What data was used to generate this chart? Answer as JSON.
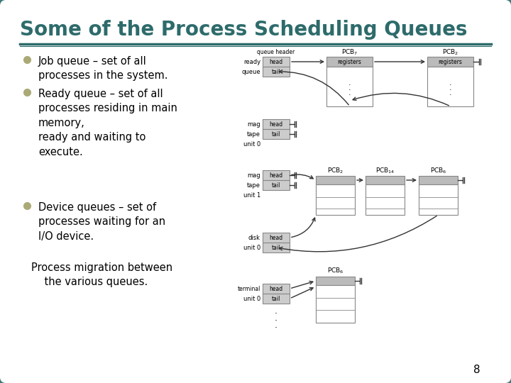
{
  "title": "Some of the Process Scheduling Queues",
  "title_color": "#2E6B6B",
  "title_fontsize": 20,
  "background_color": "#EEEEE8",
  "slide_bg": "#FFFFFF",
  "bullet_color": "#AAAA77",
  "text_color": "#000000",
  "bullets": [
    "Job queue – set of all\nprocesses in the system.",
    "Ready queue – set of all\nprocesses residing in main\nmemory,\nready and waiting to\nexecute.",
    "Device queues – set of\nprocesses waiting for an\nI/O device."
  ],
  "footer_text": "Process migration between\n    the various queues.",
  "page_number": "8",
  "header_line_color": "#2E6B6B",
  "diagram_line_color": "#333333",
  "box_fill": "#CCCCCC",
  "box_border": "#888888",
  "pcb_fill": "#FFFFFF",
  "pcb_header_fill": "#BBBBBB",
  "slide_border_color": "#3D7A7A"
}
